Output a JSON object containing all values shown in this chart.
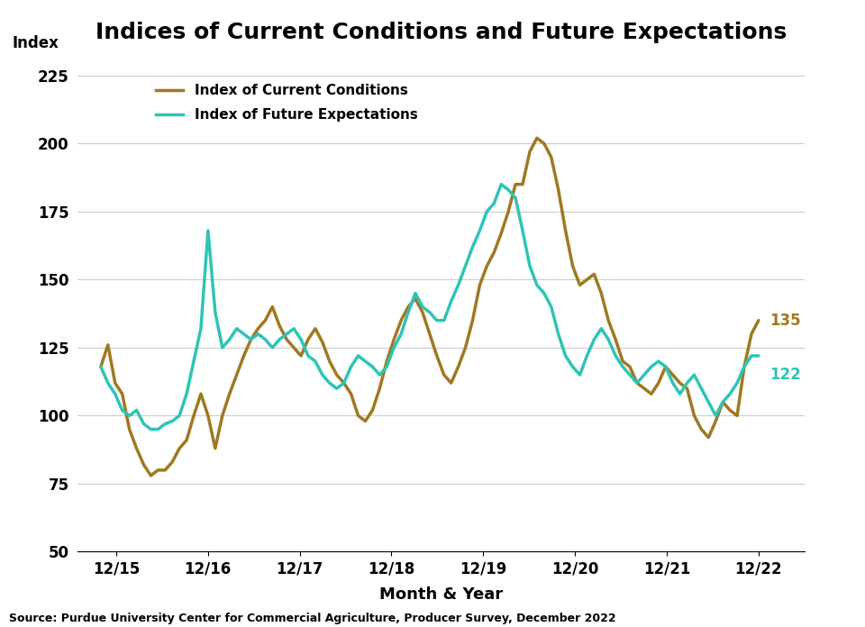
{
  "title": "Indices of Current Conditions and Future Expectations",
  "xlabel": "Month & Year",
  "ylabel": "Index",
  "source": "Source: Purdue University Center for Commercial Agriculture, Producer Survey, December 2022",
  "icc_label": "Index of Current Conditions",
  "ife_label": "Index of Future Expectations",
  "icc_color": "#A07820",
  "ife_color": "#2EC4B6",
  "icc_end_value": "135",
  "ife_end_value": "122",
  "ylim": [
    50,
    232
  ],
  "yticks": [
    50,
    75,
    100,
    125,
    150,
    175,
    200,
    225
  ],
  "xtick_labels": [
    "12/15",
    "12/16",
    "12/17",
    "12/18",
    "12/19",
    "12/20",
    "12/21",
    "12/22"
  ],
  "background_color": "#ffffff",
  "icc_data": [
    118,
    126,
    112,
    108,
    95,
    88,
    82,
    78,
    80,
    80,
    83,
    88,
    91,
    100,
    108,
    100,
    88,
    100,
    108,
    115,
    122,
    128,
    132,
    135,
    140,
    133,
    128,
    125,
    122,
    128,
    132,
    127,
    120,
    115,
    112,
    108,
    100,
    98,
    102,
    110,
    120,
    128,
    135,
    140,
    143,
    138,
    130,
    122,
    115,
    112,
    118,
    125,
    135,
    148,
    155,
    160,
    167,
    175,
    185,
    185,
    197,
    202,
    200,
    195,
    183,
    168,
    155,
    148,
    150,
    152,
    145,
    135,
    128,
    120,
    118,
    112,
    110,
    108,
    112,
    118,
    115,
    112,
    110,
    100,
    95,
    92,
    98,
    105,
    102,
    100,
    118,
    130,
    135
  ],
  "ife_data": [
    118,
    112,
    108,
    102,
    100,
    102,
    97,
    95,
    95,
    97,
    98,
    100,
    108,
    120,
    132,
    168,
    138,
    125,
    128,
    132,
    130,
    128,
    130,
    128,
    125,
    128,
    130,
    132,
    128,
    122,
    120,
    115,
    112,
    110,
    112,
    118,
    122,
    120,
    118,
    115,
    118,
    125,
    130,
    138,
    145,
    140,
    138,
    135,
    135,
    142,
    148,
    155,
    162,
    168,
    175,
    178,
    185,
    183,
    180,
    168,
    155,
    148,
    145,
    140,
    130,
    122,
    118,
    115,
    122,
    128,
    132,
    128,
    122,
    118,
    115,
    112,
    115,
    118,
    120,
    118,
    112,
    108,
    112,
    115,
    110,
    105,
    100,
    105,
    108,
    112,
    118,
    122,
    122
  ]
}
